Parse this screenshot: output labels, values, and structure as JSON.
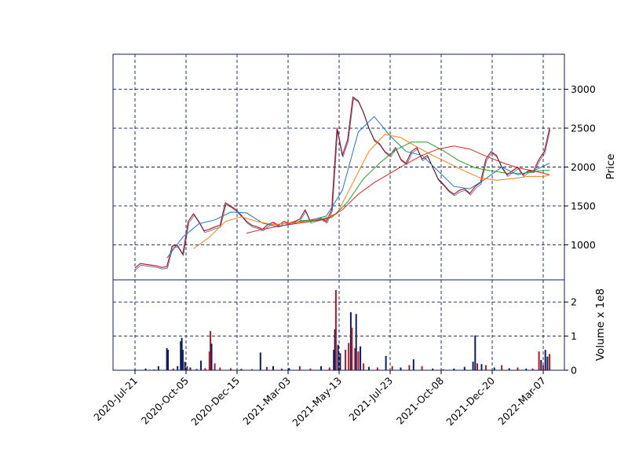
{
  "chart_data": {
    "type": "candlestick",
    "title": "",
    "x_tick_labels": [
      "2020-Jul-21",
      "2020-Oct-05",
      "2020-Dec-15",
      "2021-Mar-03",
      "2021-May-13",
      "2021-Jul-23",
      "2021-Oct-08",
      "2021-Dec-20",
      "2022-Mar-07"
    ],
    "price_panel": {
      "ylabel": "Price",
      "ylim": [
        550,
        3450
      ],
      "yticks": [
        1000,
        1500,
        2000,
        2500,
        3000
      ],
      "series": [
        {
          "x": [
            0,
            5,
            10,
            15,
            20,
            25,
            30,
            35,
            40,
            45,
            50,
            55,
            60,
            65,
            70,
            75,
            80,
            85,
            90,
            95,
            100,
            105,
            110,
            115,
            120,
            125,
            130,
            135,
            140,
            145,
            150,
            155,
            160,
            165,
            170,
            175,
            180,
            185,
            190,
            195,
            200,
            205,
            210,
            215,
            220,
            225,
            230,
            235,
            240,
            245,
            250,
            255,
            260,
            265,
            270,
            275,
            280,
            285,
            290,
            295,
            300,
            305,
            310,
            315,
            320,
            325,
            330,
            335,
            340,
            345,
            350,
            355,
            360,
            365,
            370,
            375,
            380,
            385,
            390
          ],
          "y": [
            700,
            760,
            750,
            740,
            730,
            710,
            720,
            985,
            990,
            880,
            1300,
            1400,
            1300,
            1180,
            1200,
            1230,
            1250,
            1540,
            1500,
            1450,
            1380,
            1300,
            1250,
            1230,
            1200,
            1260,
            1290,
            1250,
            1300,
            1280,
            1300,
            1330,
            1450,
            1300,
            1320,
            1340,
            1300,
            1450,
            2500,
            2150,
            2350,
            2900,
            2850,
            2700,
            2500,
            2350,
            2300,
            2200,
            2150,
            2250,
            2100,
            2050,
            2200,
            2250,
            2100,
            2150,
            2000,
            1850,
            1780,
            1700,
            1650,
            1700,
            1720,
            1660,
            1750,
            1800,
            2100,
            2200,
            2150,
            2000,
            1900,
            1950,
            2000,
            1900,
            1950,
            1950,
            2100,
            2200,
            2500
          ]
        }
      ],
      "moving_averages": [
        {
          "color": "#1f77b4",
          "x": [
            30,
            45,
            60,
            75,
            90,
            105,
            120,
            135,
            150,
            165,
            180,
            195,
            210,
            225,
            240,
            255,
            270,
            285,
            300,
            315,
            330,
            345,
            360,
            375,
            390
          ],
          "y": [
            830,
            1100,
            1270,
            1320,
            1420,
            1410,
            1280,
            1230,
            1290,
            1320,
            1370,
            1700,
            2450,
            2650,
            2400,
            2200,
            2150,
            1950,
            1750,
            1720,
            1850,
            2000,
            1900,
            1950,
            2050
          ]
        },
        {
          "color": "#ff7f0e",
          "x": [
            55,
            70,
            85,
            100,
            115,
            130,
            145,
            160,
            175,
            190,
            205,
            220,
            235,
            250,
            265,
            280,
            295,
            310,
            325,
            340,
            355,
            370,
            385,
            390
          ],
          "y": [
            950,
            1100,
            1300,
            1360,
            1300,
            1260,
            1280,
            1300,
            1330,
            1400,
            1800,
            2200,
            2420,
            2380,
            2260,
            2150,
            2050,
            1950,
            1860,
            1830,
            1850,
            1880,
            1880,
            1900
          ]
        },
        {
          "color": "#2ca02c",
          "x": [
            155,
            170,
            185,
            200,
            215,
            230,
            245,
            260,
            275,
            290,
            305,
            320,
            335,
            350,
            365,
            380,
            390
          ],
          "y": [
            1310,
            1320,
            1350,
            1550,
            1850,
            2050,
            2220,
            2320,
            2320,
            2210,
            2080,
            1990,
            1950,
            1920,
            1920,
            1950,
            1960
          ]
        },
        {
          "color": "#d62728",
          "x": [
            105,
            120,
            135,
            150,
            165,
            180,
            195,
            210,
            225,
            240,
            255,
            270,
            285,
            300,
            315,
            330,
            345,
            360,
            375,
            390
          ],
          "y": [
            1150,
            1200,
            1240,
            1270,
            1300,
            1330,
            1450,
            1650,
            1800,
            1920,
            2040,
            2150,
            2230,
            2270,
            2230,
            2140,
            2060,
            1990,
            1950,
            1900
          ]
        }
      ]
    },
    "volume_panel": {
      "ylabel": "Volume x 1e8",
      "ylim": [
        0,
        2.65
      ],
      "yticks": [
        0,
        1,
        2
      ],
      "bars": [
        {
          "x": 0,
          "value": 0.02,
          "color": "#b2182b"
        },
        {
          "x": 10,
          "value": 0.05,
          "color": "#0d1f5c"
        },
        {
          "x": 18,
          "value": 0.02,
          "color": "#0d1f5c"
        },
        {
          "x": 22,
          "value": 0.12,
          "color": "#0d1f5c"
        },
        {
          "x": 30,
          "value": 0.65,
          "color": "#0d1f5c"
        },
        {
          "x": 31,
          "value": 0.6,
          "color": "#0d1f5c"
        },
        {
          "x": 36,
          "value": 0.05,
          "color": "#b2182b"
        },
        {
          "x": 40,
          "value": 0.12,
          "color": "#0d1f5c"
        },
        {
          "x": 43,
          "value": 0.85,
          "color": "#0d1f5c"
        },
        {
          "x": 44,
          "value": 0.95,
          "color": "#0d1f5c"
        },
        {
          "x": 45,
          "value": 0.6,
          "color": "#0d1f5c"
        },
        {
          "x": 47,
          "value": 0.25,
          "color": "#0d1f5c"
        },
        {
          "x": 49,
          "value": 0.12,
          "color": "#b2182b"
        },
        {
          "x": 52,
          "value": 0.08,
          "color": "#0d1f5c"
        },
        {
          "x": 58,
          "value": 0.04,
          "color": "#b2182b"
        },
        {
          "x": 62,
          "value": 0.28,
          "color": "#0d1f5c"
        },
        {
          "x": 66,
          "value": 0.06,
          "color": "#b2182b"
        },
        {
          "x": 70,
          "value": 0.55,
          "color": "#b2182b"
        },
        {
          "x": 71,
          "value": 1.15,
          "color": "#b2182b"
        },
        {
          "x": 72,
          "value": 0.78,
          "color": "#0d1f5c"
        },
        {
          "x": 75,
          "value": 0.2,
          "color": "#b2182b"
        },
        {
          "x": 80,
          "value": 0.08,
          "color": "#b2182b"
        },
        {
          "x": 90,
          "value": 0.06,
          "color": "#b2182b"
        },
        {
          "x": 100,
          "value": 0.04,
          "color": "#0d1f5c"
        },
        {
          "x": 110,
          "value": 0.03,
          "color": "#b2182b"
        },
        {
          "x": 118,
          "value": 0.52,
          "color": "#0d1f5c"
        },
        {
          "x": 124,
          "value": 0.1,
          "color": "#b2182b"
        },
        {
          "x": 130,
          "value": 0.12,
          "color": "#0d1f5c"
        },
        {
          "x": 138,
          "value": 0.05,
          "color": "#b2182b"
        },
        {
          "x": 145,
          "value": 0.06,
          "color": "#0d1f5c"
        },
        {
          "x": 155,
          "value": 0.12,
          "color": "#b2182b"
        },
        {
          "x": 165,
          "value": 0.05,
          "color": "#b2182b"
        },
        {
          "x": 175,
          "value": 0.12,
          "color": "#0d1f5c"
        },
        {
          "x": 183,
          "value": 0.08,
          "color": "#b2182b"
        },
        {
          "x": 187,
          "value": 0.6,
          "color": "#0d1f5c"
        },
        {
          "x": 188,
          "value": 1.2,
          "color": "#0d1f5c"
        },
        {
          "x": 189,
          "value": 2.35,
          "color": "#b2182b"
        },
        {
          "x": 191,
          "value": 0.75,
          "color": "#0d1f5c"
        },
        {
          "x": 193,
          "value": 0.5,
          "color": "#0d1f5c"
        },
        {
          "x": 198,
          "value": 0.6,
          "color": "#b2182b"
        },
        {
          "x": 201,
          "value": 0.8,
          "color": "#b2182b"
        },
        {
          "x": 203,
          "value": 1.7,
          "color": "#0d1f5c"
        },
        {
          "x": 204,
          "value": 1.25,
          "color": "#b2182b"
        },
        {
          "x": 207,
          "value": 0.65,
          "color": "#b2182b"
        },
        {
          "x": 208,
          "value": 1.65,
          "color": "#0d1f5c"
        },
        {
          "x": 210,
          "value": 0.55,
          "color": "#b2182b"
        },
        {
          "x": 212,
          "value": 0.7,
          "color": "#0d1f5c"
        },
        {
          "x": 215,
          "value": 0.2,
          "color": "#b2182b"
        },
        {
          "x": 220,
          "value": 0.1,
          "color": "#0d1f5c"
        },
        {
          "x": 228,
          "value": 0.08,
          "color": "#b2182b"
        },
        {
          "x": 236,
          "value": 0.42,
          "color": "#0d1f5c"
        },
        {
          "x": 242,
          "value": 0.12,
          "color": "#b2182b"
        },
        {
          "x": 250,
          "value": 0.08,
          "color": "#0d1f5c"
        },
        {
          "x": 258,
          "value": 0.15,
          "color": "#b2182b"
        },
        {
          "x": 262,
          "value": 0.32,
          "color": "#0d1f5c"
        },
        {
          "x": 270,
          "value": 0.12,
          "color": "#b2182b"
        },
        {
          "x": 280,
          "value": 0.05,
          "color": "#0d1f5c"
        },
        {
          "x": 290,
          "value": 0.03,
          "color": "#b2182b"
        },
        {
          "x": 300,
          "value": 0.05,
          "color": "#0d1f5c"
        },
        {
          "x": 310,
          "value": 0.1,
          "color": "#0d1f5c"
        },
        {
          "x": 318,
          "value": 0.25,
          "color": "#0d1f5c"
        },
        {
          "x": 320,
          "value": 1.02,
          "color": "#0d1f5c"
        },
        {
          "x": 322,
          "value": 0.2,
          "color": "#b2182b"
        },
        {
          "x": 326,
          "value": 0.18,
          "color": "#0d1f5c"
        },
        {
          "x": 330,
          "value": 0.15,
          "color": "#b2182b"
        },
        {
          "x": 338,
          "value": 0.08,
          "color": "#0d1f5c"
        },
        {
          "x": 345,
          "value": 0.15,
          "color": "#b2182b"
        },
        {
          "x": 352,
          "value": 0.06,
          "color": "#0d1f5c"
        },
        {
          "x": 360,
          "value": 0.08,
          "color": "#b2182b"
        },
        {
          "x": 368,
          "value": 0.05,
          "color": "#0d1f5c"
        },
        {
          "x": 374,
          "value": 0.05,
          "color": "#b2182b"
        },
        {
          "x": 380,
          "value": 0.55,
          "color": "#b2182b"
        },
        {
          "x": 382,
          "value": 0.3,
          "color": "#0d1f5c"
        },
        {
          "x": 384,
          "value": 0.15,
          "color": "#b2182b"
        },
        {
          "x": 386,
          "value": 0.6,
          "color": "#0d1f5c"
        },
        {
          "x": 388,
          "value": 0.4,
          "color": "#0d1f5c"
        },
        {
          "x": 390,
          "value": 0.48,
          "color": "#b2182b"
        }
      ]
    },
    "grid": true,
    "colors": {
      "up": "#0d1f5c",
      "down": "#b2182b",
      "grid": "#0d1f5c",
      "axes": "#0d1f5c"
    }
  }
}
